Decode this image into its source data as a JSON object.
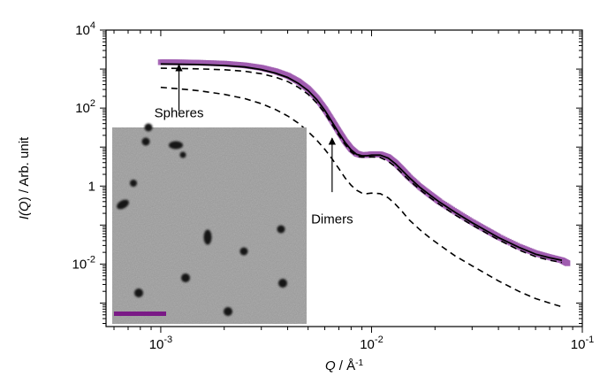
{
  "chart_data": {
    "type": "scatter",
    "title": "",
    "xlabel": {
      "pre": "Q",
      "mid": " / Å",
      "sup": "-1"
    },
    "ylabel": {
      "pre": "I(",
      "italic": "Q",
      "post": ") / Arb. unit"
    },
    "xscale": "log",
    "yscale": "log",
    "xlim": [
      0.00055,
      0.1
    ],
    "ylim": [
      0.00025,
      10000
    ],
    "grid": false,
    "legend": "none",
    "x_ticks": [
      {
        "value": 0.001,
        "base": "10",
        "exp": "-3"
      },
      {
        "value": 0.01,
        "base": "10",
        "exp": "-2"
      },
      {
        "value": 0.1,
        "base": "10",
        "exp": "-1"
      }
    ],
    "y_ticks": [
      {
        "value": 0.01,
        "base": "10",
        "exp": "-2"
      },
      {
        "value": 1,
        "base": "1",
        "exp": ""
      },
      {
        "value": 100,
        "base": "10",
        "exp": "2"
      },
      {
        "value": 10000,
        "base": "10",
        "exp": "4"
      }
    ],
    "annotations": [
      {
        "text": "Spheres",
        "text_at": [
          0.00122,
          58
        ],
        "arrow_from": [
          0.00122,
          85
        ],
        "arrow_to": [
          0.00122,
          1300
        ]
      },
      {
        "text": "Dimers",
        "text_at": [
          0.0065,
          0.11
        ],
        "arrow_from": [
          0.0065,
          0.7
        ],
        "arrow_to": [
          0.0065,
          17
        ]
      }
    ],
    "series": [
      {
        "role": "data-points",
        "color": "#a05cb0",
        "x": [
          0.001,
          0.0012,
          0.0015,
          0.002,
          0.0025,
          0.003,
          0.0035,
          0.004,
          0.0045,
          0.005,
          0.0055,
          0.006,
          0.0065,
          0.007,
          0.0075,
          0.008,
          0.0085,
          0.009,
          0.0095,
          0.01,
          0.011,
          0.012,
          0.013,
          0.014,
          0.015,
          0.017,
          0.019,
          0.021,
          0.025,
          0.03,
          0.035,
          0.04,
          0.05,
          0.06,
          0.07,
          0.08,
          0.085
        ],
        "y": [
          1500,
          1490,
          1460,
          1380,
          1250,
          1080,
          880,
          680,
          480,
          310,
          180,
          95,
          48,
          25,
          14,
          9,
          6.8,
          6.2,
          6.3,
          6.5,
          6.5,
          5.5,
          3.9,
          2.6,
          1.75,
          0.95,
          0.6,
          0.4,
          0.22,
          0.12,
          0.075,
          0.05,
          0.028,
          0.019,
          0.015,
          0.0125,
          0.0105
        ]
      },
      {
        "role": "fit",
        "style": "solid",
        "color": "#000000",
        "x": [
          0.001,
          0.0012,
          0.0015,
          0.002,
          0.0025,
          0.003,
          0.0035,
          0.004,
          0.0045,
          0.005,
          0.0055,
          0.006,
          0.0065,
          0.007,
          0.0075,
          0.008,
          0.0085,
          0.009,
          0.0095,
          0.01,
          0.011,
          0.012,
          0.013,
          0.014,
          0.015,
          0.017,
          0.019,
          0.021,
          0.025,
          0.03,
          0.035,
          0.04,
          0.05,
          0.06,
          0.07,
          0.08
        ],
        "y": [
          1350,
          1340,
          1310,
          1240,
          1130,
          970,
          790,
          610,
          430,
          280,
          165,
          88,
          44,
          23,
          13,
          8.5,
          6.5,
          6,
          6,
          6.2,
          6.2,
          5.2,
          3.7,
          2.5,
          1.7,
          0.92,
          0.58,
          0.39,
          0.21,
          0.115,
          0.072,
          0.048,
          0.027,
          0.018,
          0.0145,
          0.0125
        ]
      },
      {
        "role": "spheres",
        "style": "dashed",
        "color": "#000000",
        "x": [
          0.001,
          0.0012,
          0.0015,
          0.002,
          0.0025,
          0.003,
          0.0035,
          0.004,
          0.0045,
          0.005,
          0.0055,
          0.006,
          0.0065,
          0.007,
          0.0075,
          0.008,
          0.0085,
          0.009,
          0.0095,
          0.01,
          0.011,
          0.012,
          0.013,
          0.014,
          0.015,
          0.017,
          0.019,
          0.021,
          0.025,
          0.03,
          0.035,
          0.04,
          0.05,
          0.06,
          0.07,
          0.08
        ],
        "y": [
          1050,
          1040,
          1015,
          960,
          880,
          760,
          620,
          480,
          340,
          225,
          135,
          75,
          38,
          20,
          11.5,
          7.6,
          5.9,
          5.5,
          5.5,
          5.6,
          5.4,
          4.3,
          3.1,
          2.1,
          1.45,
          0.8,
          0.5,
          0.34,
          0.18,
          0.1,
          0.063,
          0.042,
          0.023,
          0.0155,
          0.0125,
          0.011
        ]
      },
      {
        "role": "dimers",
        "style": "dashed",
        "color": "#000000",
        "x": [
          0.001,
          0.0012,
          0.0015,
          0.002,
          0.0025,
          0.003,
          0.0035,
          0.004,
          0.0045,
          0.005,
          0.0055,
          0.006,
          0.0065,
          0.007,
          0.0075,
          0.008,
          0.0085,
          0.009,
          0.0095,
          0.01,
          0.011,
          0.012,
          0.013,
          0.014,
          0.015,
          0.017,
          0.019,
          0.021,
          0.025,
          0.03,
          0.035,
          0.04,
          0.05,
          0.06,
          0.07,
          0.08
        ],
        "y": [
          340,
          315,
          280,
          225,
          175,
          130,
          92,
          63,
          41,
          25,
          15,
          8.8,
          5,
          2.8,
          1.6,
          1.05,
          0.78,
          0.66,
          0.64,
          0.66,
          0.64,
          0.5,
          0.34,
          0.22,
          0.14,
          0.075,
          0.046,
          0.031,
          0.016,
          0.009,
          0.0056,
          0.0037,
          0.002,
          0.0013,
          0.001,
          0.0008
        ]
      }
    ],
    "inset": {
      "kind": "micrograph",
      "background": "#9d9d9d",
      "scale_bar_color": "#7a1a86"
    }
  }
}
